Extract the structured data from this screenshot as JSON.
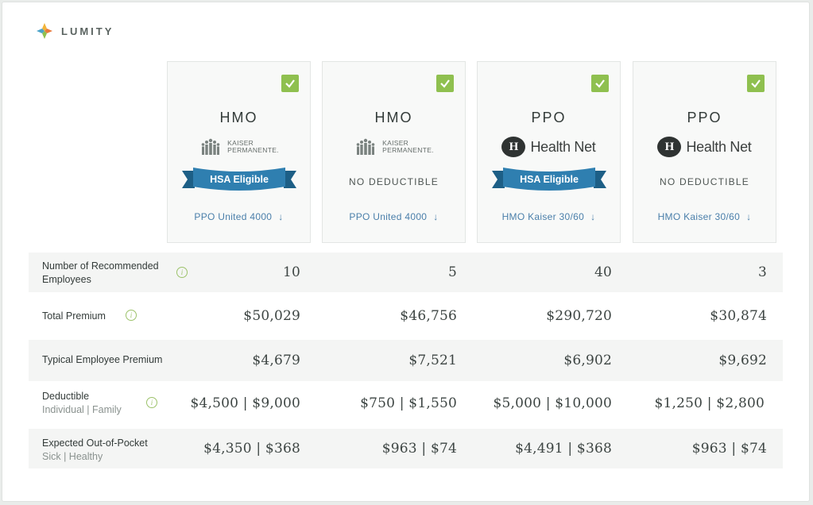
{
  "brand": {
    "name": "LUMITY"
  },
  "plans": [
    {
      "type": "HMO",
      "carrier": "Kaiser Permanente",
      "carrier_text": "KAISER\nPERMANENTE.",
      "badge": "HSA Eligible",
      "note": "",
      "link": "PPO United 4000",
      "selected": true
    },
    {
      "type": "HMO",
      "carrier": "Kaiser Permanente",
      "carrier_text": "KAISER\nPERMANENTE.",
      "badge": "",
      "note": "NO DEDUCTIBLE",
      "link": "PPO United 4000",
      "selected": true
    },
    {
      "type": "PPO",
      "carrier": "Health Net",
      "carrier_text": "Health Net",
      "badge": "HSA Eligible",
      "note": "",
      "link": "HMO Kaiser 30/60",
      "selected": true
    },
    {
      "type": "PPO",
      "carrier": "Health Net",
      "carrier_text": "Health Net",
      "badge": "",
      "note": "NO DEDUCTIBLE",
      "link": "HMO Kaiser 30/60",
      "selected": true
    }
  ],
  "rows": [
    {
      "label": "Number of Recommended Employees",
      "label_line1": "Number of Recommended",
      "label_line2": "Employees",
      "has_info": true,
      "values": [
        "10",
        "5",
        "40",
        "3"
      ]
    },
    {
      "label": "Total Premium",
      "has_info": true,
      "values": [
        "$50,029",
        "$46,756",
        "$290,720",
        "$30,874"
      ]
    },
    {
      "label": "Typical Employee Premium",
      "has_info": false,
      "values": [
        "$4,679",
        "$7,521",
        "$6,902",
        "$9,692"
      ]
    },
    {
      "label": "Deductible",
      "sublabel": "Individual | Family",
      "has_info": true,
      "values": [
        "$4,500 | $9,000",
        "$750 | $1,550",
        "$5,000 | $10,000",
        "$1,250 | $2,800"
      ]
    },
    {
      "label": "Expected Out-of-Pocket",
      "sublabel": "Sick | Healthy",
      "has_info": false,
      "values": [
        "$4,350 | $368",
        "$963 | $74",
        "$4,491 | $368",
        "$963 | $74"
      ]
    }
  ],
  "colors": {
    "accent_green": "#8fc04f",
    "ribbon_blue": "#2f7fb0",
    "link_blue": "#4a7faa"
  },
  "icons": {
    "info": "i",
    "download": "↓",
    "check": "check-icon"
  }
}
